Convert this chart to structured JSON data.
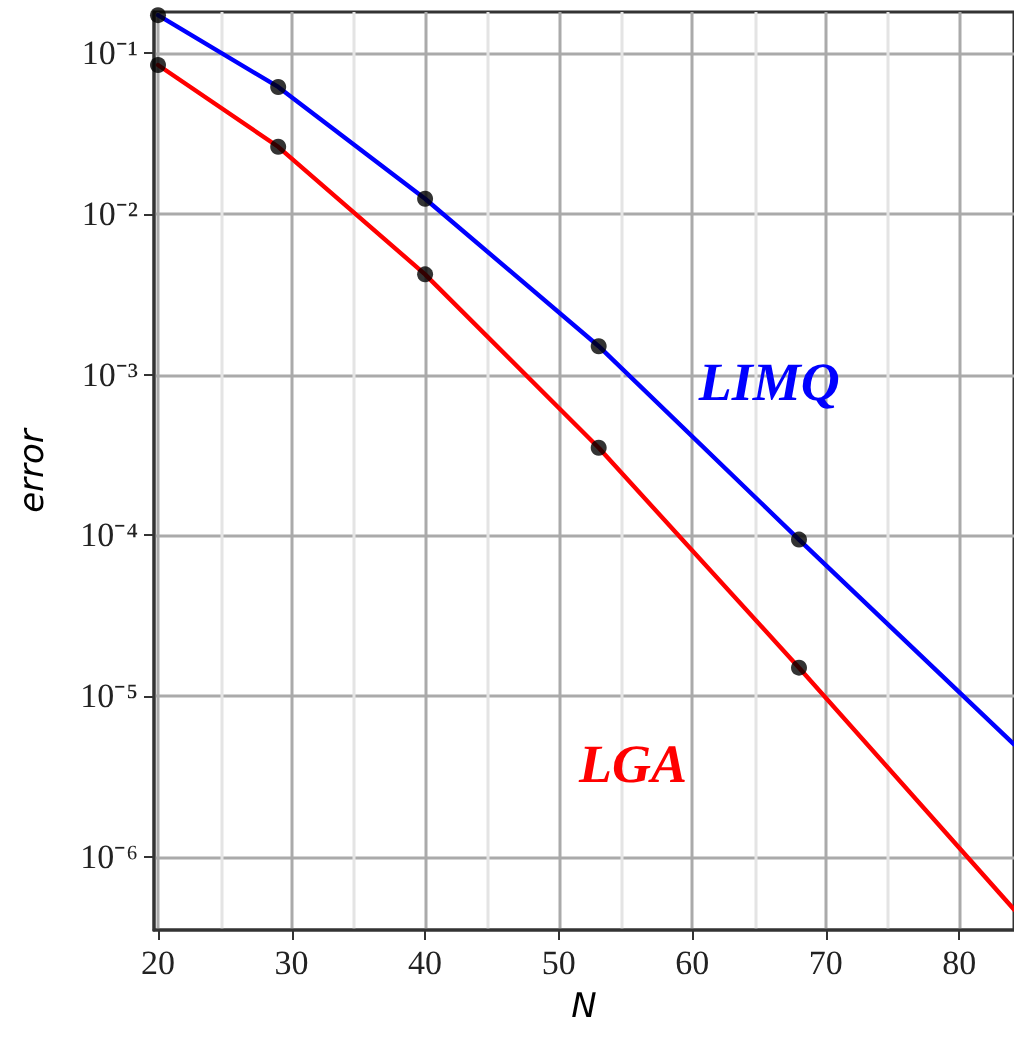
{
  "chart_data": {
    "type": "line",
    "xlabel": "N",
    "ylabel": "error",
    "log": "y",
    "grid": true,
    "marker": "none",
    "line_style": "solid",
    "xlim": [
      19.7,
      84.1
    ],
    "xticks": [
      20,
      30,
      40,
      50,
      60,
      70,
      80
    ],
    "ylim": [
      3.5e-07,
      0.18
    ],
    "yticks": [
      {
        "value": 0.1,
        "label": "10⁻¹"
      },
      {
        "value": 0.01,
        "label": "10⁻²"
      },
      {
        "value": 0.001,
        "label": "10⁻³"
      },
      {
        "value": 0.0001,
        "label": "10⁻⁴"
      },
      {
        "value": 1e-05,
        "label": "10⁻⁵"
      },
      {
        "value": 1e-06,
        "label": "10⁻⁶"
      }
    ],
    "series": [
      {
        "name": "LIMQ",
        "color": "#0000ff",
        "x": [
          20,
          29,
          40,
          53,
          68,
          84.1
        ],
        "values": [
          0.172,
          0.0615,
          0.0124,
          0.0015,
          9.4e-05,
          5e-06
        ]
      },
      {
        "name": "LGA",
        "color": "#ff0000",
        "x": [
          20,
          29,
          40,
          53,
          68,
          84.1
        ],
        "values": [
          0.0843,
          0.0261,
          0.0042,
          0.00035,
          1.5e-05,
          4.7e-07
        ]
      },
      {
        "type": "scatter",
        "marker": "circle",
        "color": "#000000",
        "x": [
          20,
          29,
          40,
          53,
          68
        ],
        "values": [
          0.172,
          0.0615,
          0.0124,
          0.0015,
          9.4e-05
        ]
      },
      {
        "type": "scatter",
        "marker": "circle",
        "color": "#000000",
        "x": [
          20,
          29,
          40,
          53,
          68
        ],
        "values": [
          0.0843,
          0.0261,
          0.0042,
          0.00035,
          1.5e-05
        ]
      }
    ]
  }
}
